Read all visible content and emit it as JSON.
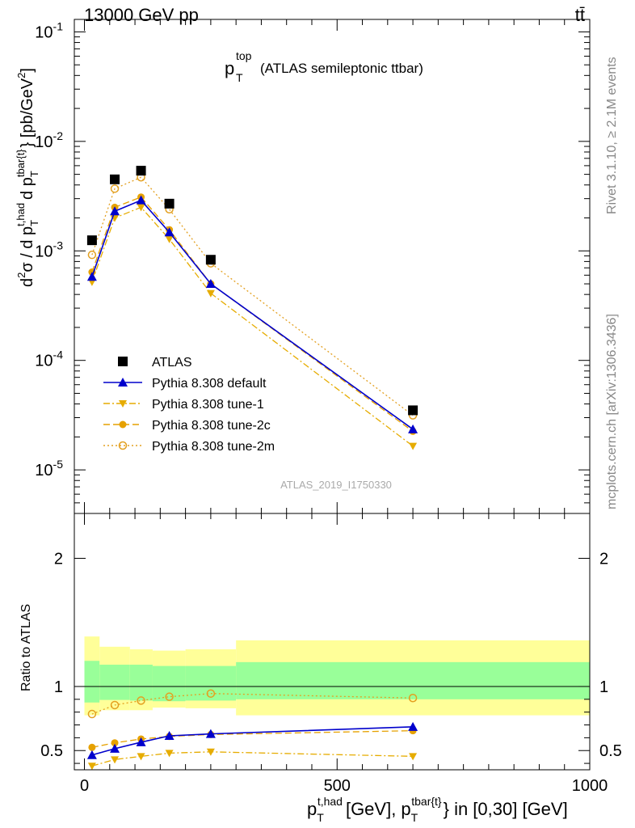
{
  "header": {
    "energy": "13000 GeV pp",
    "process": "tt̄",
    "rivet": "Rivet 3.1.10, ≥ 2.1M events",
    "site": "mcplots.cern.ch [arXiv:1306.3436]",
    "analysis": "ATLAS_2019_I1750330"
  },
  "colors": {
    "atlas": "#000000",
    "default": "#0000cc",
    "tune1": "#e6ac00",
    "tune2c": "#e6a100",
    "tune2m": "#e3a020",
    "band_inner": "#99ff99",
    "band_outer": "#ffff99"
  },
  "chart_data": [
    {
      "type": "scatter",
      "panel": "main",
      "title_main": "p",
      "title_sup": "top",
      "title_sub": "T",
      "title_rest": "(ATLAS semileptonic ttbar)",
      "ylabel": "d²σ / d p_T^{t,had} d p_T^{tbar{t}} [pb/GeV²]",
      "yscale": "log",
      "ylim": [
        4e-06,
        0.13
      ],
      "xlim": [
        -20,
        1000
      ],
      "yticks": [
        "10^-5",
        "10^-4",
        "10^-3",
        "10^-2",
        "10^-1"
      ],
      "legend_position": "center-left",
      "x": [
        15,
        60,
        112,
        168,
        250,
        650
      ],
      "series": [
        {
          "name": "ATLAS",
          "key": "atlas",
          "marker": "square",
          "values": [
            0.00125,
            0.0045,
            0.0054,
            0.0027,
            0.00083,
            3.5e-05
          ]
        },
        {
          "name": "Pythia 8.308 default",
          "key": "default",
          "marker": "triangle-up",
          "line": "solid",
          "values": [
            0.00058,
            0.0023,
            0.0029,
            0.00148,
            0.0005,
            2.35e-05
          ]
        },
        {
          "name": "Pythia 8.308 tune-1",
          "key": "tune1",
          "marker": "triangle-down",
          "line": "dashdot",
          "values": [
            0.00052,
            0.002,
            0.0025,
            0.00128,
            0.00041,
            1.65e-05
          ]
        },
        {
          "name": "Pythia 8.308 tune-2c",
          "key": "tune2c",
          "marker": "circle",
          "line": "dashed",
          "values": [
            0.00064,
            0.0025,
            0.0031,
            0.00156,
            0.0005,
            2.25e-05
          ]
        },
        {
          "name": "Pythia 8.308 tune-2m",
          "key": "tune2m",
          "marker": "open-circle",
          "line": "dotted",
          "values": [
            0.00092,
            0.0037,
            0.0047,
            0.0024,
            0.00077,
            3.15e-05
          ]
        }
      ]
    },
    {
      "type": "scatter",
      "panel": "ratio",
      "ylabel": "Ratio to ATLAS",
      "ylim": [
        0.35,
        2.35
      ],
      "yticks": [
        "0.5",
        "1",
        "2"
      ],
      "xlabel": "p_T^{t,had} [GeV], p_T^{tbar{t}} in [0,30] [GeV]",
      "xticks": [
        "0",
        "500",
        "1000"
      ],
      "bands": {
        "edges": [
          0,
          30,
          90,
          135,
          200,
          300,
          1000
        ],
        "inner_lo": [
          0.875,
          0.895,
          0.89,
          0.885,
          0.89,
          0.9
        ],
        "inner_hi": [
          1.2,
          1.17,
          1.17,
          1.16,
          1.16,
          1.19
        ],
        "outer_lo": [
          0.775,
          0.815,
          0.815,
          0.835,
          0.83,
          0.775
        ],
        "outer_hi": [
          1.39,
          1.31,
          1.29,
          1.28,
          1.29,
          1.36
        ]
      },
      "x": [
        15,
        60,
        112,
        168,
        250,
        650
      ],
      "series": [
        {
          "name": "Pythia 8.308 default",
          "key": "default",
          "values": [
            0.465,
            0.515,
            0.565,
            0.615,
            0.63,
            0.685
          ]
        },
        {
          "name": "Pythia 8.308 tune-1",
          "key": "tune1",
          "values": [
            0.38,
            0.43,
            0.455,
            0.48,
            0.49,
            0.455
          ]
        },
        {
          "name": "Pythia 8.308 tune-2c",
          "key": "tune2c",
          "values": [
            0.525,
            0.56,
            0.59,
            0.61,
            0.625,
            0.655
          ]
        },
        {
          "name": "Pythia 8.308 tune-2m",
          "key": "tune2m",
          "values": [
            0.785,
            0.855,
            0.89,
            0.92,
            0.945,
            0.91
          ]
        }
      ]
    }
  ]
}
